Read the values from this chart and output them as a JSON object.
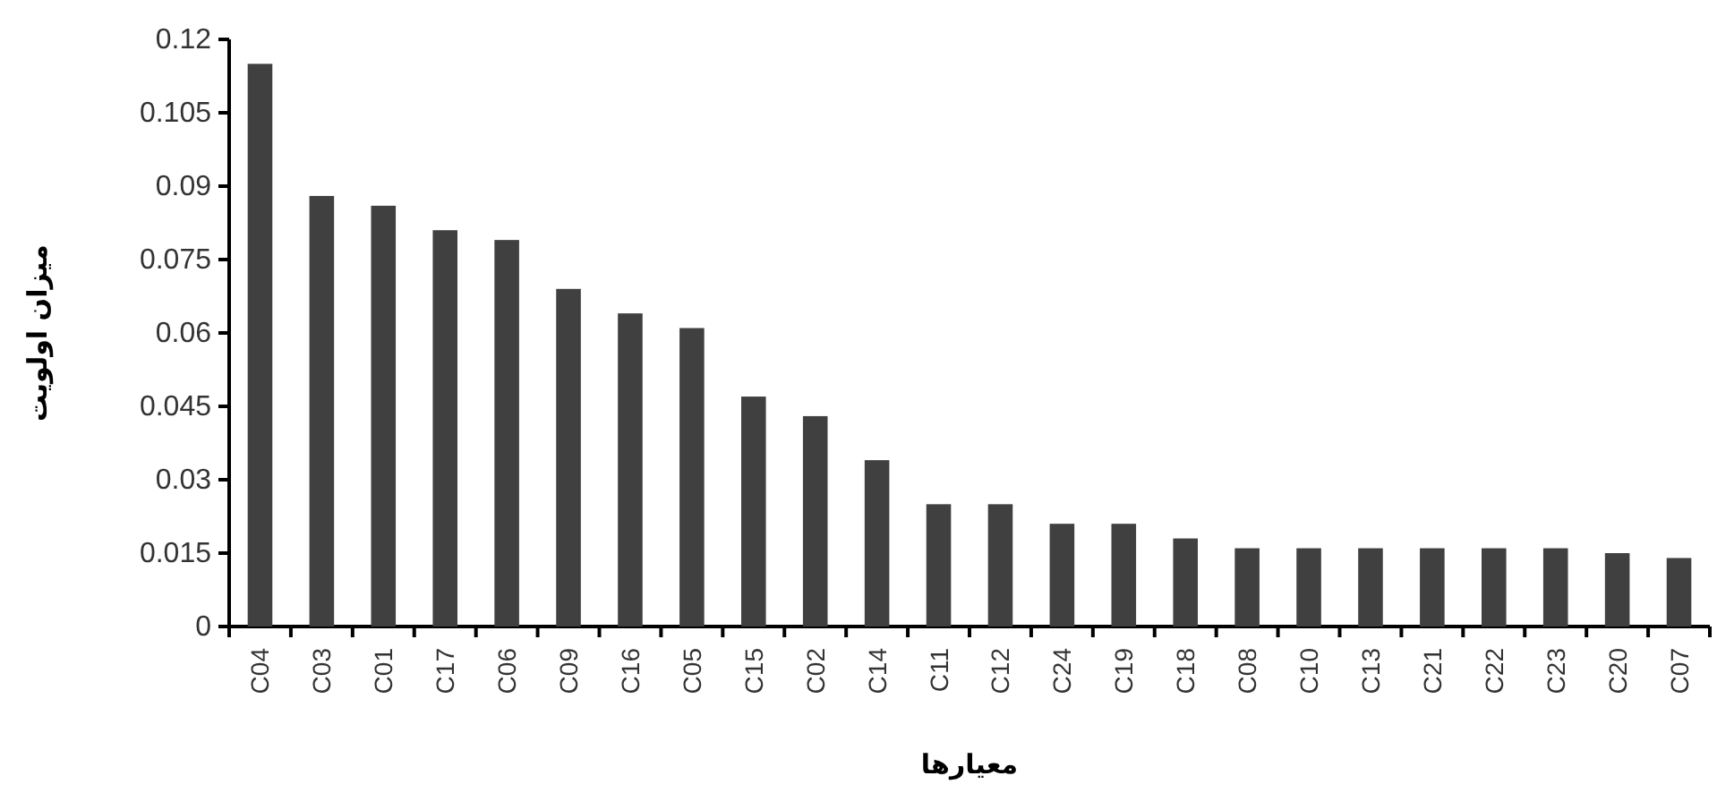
{
  "chart_data": {
    "type": "bar",
    "xlabel": "معیارها",
    "ylabel": "میزان اولویت",
    "categories": [
      "C04",
      "C03",
      "C01",
      "C17",
      "C06",
      "C09",
      "C16",
      "C05",
      "C15",
      "C02",
      "C14",
      "C11",
      "C12",
      "C24",
      "C19",
      "C18",
      "C08",
      "C10",
      "C13",
      "C21",
      "C22",
      "C23",
      "C20",
      "C07"
    ],
    "values": [
      0.115,
      0.088,
      0.086,
      0.081,
      0.079,
      0.069,
      0.064,
      0.061,
      0.047,
      0.043,
      0.034,
      0.025,
      0.025,
      0.021,
      0.021,
      0.018,
      0.016,
      0.016,
      0.016,
      0.016,
      0.016,
      0.016,
      0.015,
      0.014
    ],
    "color": "#404040",
    "ylim": [
      0,
      0.12
    ],
    "yticks": [
      0,
      0.015,
      0.03,
      0.045,
      0.06,
      0.075,
      0.09,
      0.105,
      0.12
    ]
  }
}
